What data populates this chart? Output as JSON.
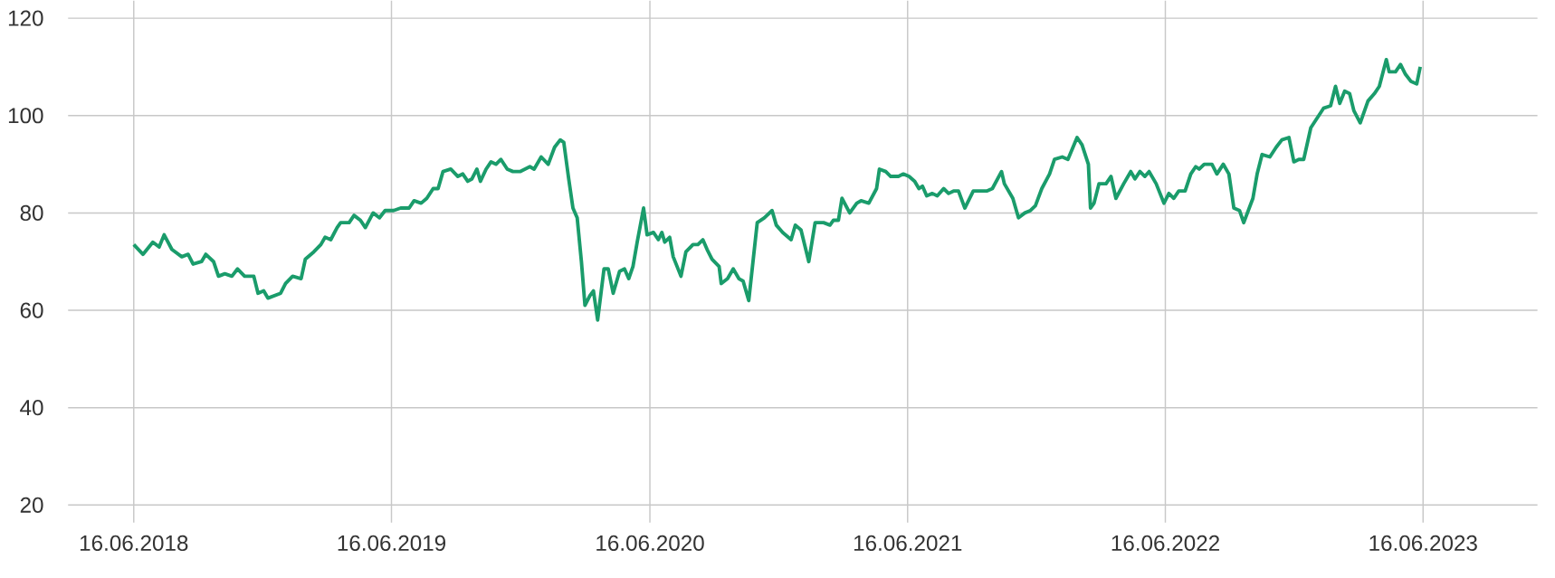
{
  "chart_data": {
    "type": "line",
    "color": "#1a9c6b",
    "grid": true,
    "xlim": [
      "2018-03-15",
      "2023-11-25"
    ],
    "ylim": [
      20,
      120
    ],
    "yticks": [
      20,
      40,
      60,
      80,
      100,
      120
    ],
    "xticks": [
      {
        "value": "2018-06-16",
        "label": "16.06.2018"
      },
      {
        "value": "2019-06-16",
        "label": "16.06.2019"
      },
      {
        "value": "2020-06-16",
        "label": "16.06.2020"
      },
      {
        "value": "2021-06-16",
        "label": "16.06.2021"
      },
      {
        "value": "2022-06-16",
        "label": "16.06.2022"
      },
      {
        "value": "2023-06-16",
        "label": "16.06.2023"
      }
    ],
    "x": [
      "2018-06-16",
      "2018-06-29",
      "2018-07-13",
      "2018-07-22",
      "2018-07-29",
      "2018-08-09",
      "2018-08-23",
      "2018-09-01",
      "2018-09-08",
      "2018-09-20",
      "2018-09-26",
      "2018-10-07",
      "2018-10-14",
      "2018-10-23",
      "2018-11-02",
      "2018-11-10",
      "2018-11-20",
      "2018-12-03",
      "2018-12-09",
      "2018-12-17",
      "2018-12-23",
      "2019-01-10",
      "2019-01-17",
      "2019-01-27",
      "2019-02-08",
      "2019-02-14",
      "2019-02-26",
      "2019-03-08",
      "2019-03-14",
      "2019-03-22",
      "2019-03-31",
      "2019-04-05",
      "2019-04-17",
      "2019-04-24",
      "2019-05-03",
      "2019-05-10",
      "2019-05-21",
      "2019-05-30",
      "2019-06-07",
      "2019-06-19",
      "2019-06-29",
      "2019-07-11",
      "2019-07-18",
      "2019-07-28",
      "2019-08-05",
      "2019-08-14",
      "2019-08-21",
      "2019-08-28",
      "2019-09-08",
      "2019-09-18",
      "2019-09-25",
      "2019-10-02",
      "2019-10-08",
      "2019-10-15",
      "2019-10-20",
      "2019-10-28",
      "2019-11-04",
      "2019-11-11",
      "2019-11-18",
      "2019-11-27",
      "2019-12-05",
      "2019-12-15",
      "2019-12-29",
      "2020-01-04",
      "2020-01-14",
      "2020-01-24",
      "2020-02-02",
      "2020-02-10",
      "2020-02-15",
      "2020-02-22",
      "2020-02-28",
      "2020-03-05",
      "2020-03-11",
      "2020-03-16",
      "2020-03-23",
      "2020-03-28",
      "2020-04-03",
      "2020-04-12",
      "2020-04-18",
      "2020-04-25",
      "2020-05-04",
      "2020-05-11",
      "2020-05-17",
      "2020-05-23",
      "2020-05-29",
      "2020-06-07",
      "2020-06-12",
      "2020-06-21",
      "2020-06-28",
      "2020-07-03",
      "2020-07-07",
      "2020-07-14",
      "2020-07-19",
      "2020-07-30",
      "2020-08-06",
      "2020-08-16",
      "2020-08-23",
      "2020-08-30",
      "2020-09-05",
      "2020-09-12",
      "2020-09-22",
      "2020-09-25",
      "2020-10-04",
      "2020-10-12",
      "2020-10-20",
      "2020-10-26",
      "2020-11-03",
      "2020-11-15",
      "2020-11-25",
      "2020-12-06",
      "2020-12-12",
      "2020-12-21",
      "2021-01-02",
      "2021-01-08",
      "2021-01-16",
      "2021-01-27",
      "2021-02-05",
      "2021-02-17",
      "2021-02-26",
      "2021-03-03",
      "2021-03-10",
      "2021-03-15",
      "2021-03-26",
      "2021-04-05",
      "2021-04-11",
      "2021-04-22",
      "2021-05-03",
      "2021-05-07",
      "2021-05-16",
      "2021-05-23",
      "2021-06-03",
      "2021-06-10",
      "2021-06-18",
      "2021-06-26",
      "2021-07-02",
      "2021-07-07",
      "2021-07-13",
      "2021-07-21",
      "2021-07-28",
      "2021-08-06",
      "2021-08-13",
      "2021-08-20",
      "2021-08-27",
      "2021-09-05",
      "2021-09-17",
      "2021-09-25",
      "2021-10-06",
      "2021-10-14",
      "2021-10-27",
      "2021-10-31",
      "2021-11-12",
      "2021-11-20",
      "2021-11-29",
      "2021-12-07",
      "2021-12-14",
      "2021-12-23",
      "2022-01-03",
      "2022-01-10",
      "2022-01-21",
      "2022-01-29",
      "2022-02-11",
      "2022-02-18",
      "2022-02-27",
      "2022-03-02",
      "2022-03-07",
      "2022-03-14",
      "2022-03-24",
      "2022-03-31",
      "2022-04-07",
      "2022-04-18",
      "2022-04-28",
      "2022-05-04",
      "2022-05-11",
      "2022-05-18",
      "2022-05-24",
      "2022-06-03",
      "2022-06-14",
      "2022-06-21",
      "2022-06-28",
      "2022-07-05",
      "2022-07-14",
      "2022-07-22",
      "2022-07-29",
      "2022-08-03",
      "2022-08-10",
      "2022-08-21",
      "2022-08-28",
      "2022-09-06",
      "2022-09-14",
      "2022-09-21",
      "2022-09-29",
      "2022-10-05",
      "2022-10-18",
      "2022-10-24",
      "2022-10-31",
      "2022-11-11",
      "2022-11-20",
      "2022-11-28",
      "2022-12-08",
      "2022-12-15",
      "2022-12-22",
      "2022-12-29",
      "2023-01-08",
      "2023-01-26",
      "2023-02-05",
      "2023-02-12",
      "2023-02-18",
      "2023-02-25",
      "2023-03-04",
      "2023-03-10",
      "2023-03-19",
      "2023-03-30",
      "2023-04-08",
      "2023-04-15",
      "2023-04-25",
      "2023-04-29",
      "2023-05-08",
      "2023-05-15",
      "2023-05-22",
      "2023-05-30",
      "2023-06-07",
      "2023-06-12"
    ],
    "values": [
      73.5,
      71.5,
      74,
      73,
      75.5,
      72.5,
      71,
      71.5,
      69.5,
      70,
      71.5,
      70,
      67,
      67.5,
      67,
      68.5,
      67,
      67,
      63.5,
      64,
      62.5,
      63.5,
      65.5,
      67,
      66.5,
      70.5,
      72,
      73.5,
      75,
      74.5,
      77,
      78,
      78,
      79.5,
      78.5,
      77,
      80,
      79,
      80.5,
      80.5,
      81,
      81,
      82.5,
      82,
      83,
      85,
      85,
      88.5,
      89,
      87.5,
      88,
      86.5,
      87,
      89,
      86.5,
      89,
      90.5,
      90,
      91,
      89,
      88.5,
      88.5,
      89.5,
      89,
      91.5,
      90,
      93.5,
      95,
      94.5,
      87,
      81,
      79,
      70,
      61,
      63,
      64,
      58,
      68.5,
      68.5,
      63.5,
      68,
      68.5,
      66.5,
      69,
      74,
      81,
      75.5,
      76,
      74.5,
      76,
      74,
      75,
      71,
      67,
      72,
      73.5,
      73.5,
      74.5,
      72.5,
      70.5,
      69,
      65.5,
      66.5,
      68.5,
      66.5,
      66,
      62,
      78,
      79,
      80.5,
      77.5,
      76,
      74.5,
      77.5,
      76.5,
      70,
      78,
      78,
      77.5,
      78.5,
      78.5,
      83,
      80,
      82,
      82.5,
      82,
      85,
      89,
      88.5,
      87.5,
      87.5,
      88,
      87.5,
      86.5,
      85,
      85.5,
      83.5,
      84,
      83.5,
      85,
      84,
      84.5,
      84.5,
      81,
      84.5,
      84.5,
      84.5,
      85,
      88.5,
      86,
      83,
      79,
      80,
      80.5,
      81.5,
      85,
      88,
      91,
      91.5,
      91,
      95.5,
      94,
      90,
      81,
      82,
      86,
      86,
      87.5,
      83,
      86,
      88.5,
      87,
      88.5,
      87.5,
      88.5,
      86,
      82,
      84,
      83,
      84.5,
      84.5,
      88,
      89.5,
      89,
      90,
      90,
      88,
      90,
      88,
      81,
      80.5,
      78,
      83,
      88,
      92,
      91.5,
      93.5,
      95,
      95.5,
      90.5,
      91,
      91,
      97.5,
      101.5,
      102,
      106,
      102.5,
      105,
      104.5,
      101,
      98.5,
      103,
      104.5,
      106,
      111.5,
      109,
      109,
      110.5,
      108.5,
      107,
      106.5,
      110
    ]
  }
}
